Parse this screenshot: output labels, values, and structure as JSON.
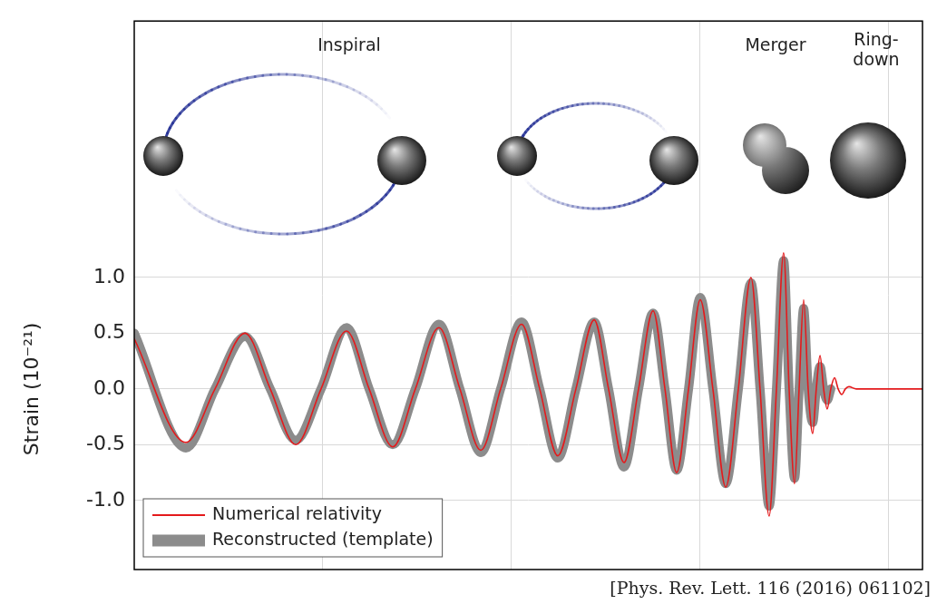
{
  "chart_data": {
    "type": "line",
    "annotations": [
      "Inspiral",
      "Merger",
      "Ring-down"
    ],
    "ylabel": "Strain (10⁻²¹)",
    "source": "[Phys. Rev. Lett. 116 (2016) 061102]",
    "xlim": [
      0,
      4.178
    ],
    "xticks": [
      1,
      2,
      3,
      4
    ],
    "ylim": [
      -1.62,
      3.3
    ],
    "yticks": [
      {
        "value": -1,
        "label": "-1.0"
      },
      {
        "value": -0.5,
        "label": "-0.5"
      },
      {
        "value": 0,
        "label": "0.0"
      },
      {
        "value": 0.5,
        "label": "0.5"
      },
      {
        "value": 1,
        "label": "1.0"
      }
    ],
    "grid": true,
    "legend": "lower left",
    "tick_labels": "y",
    "series": [
      {
        "name": "Numerical relativity",
        "color": "#e41a1c",
        "x": [
          0,
          0.274,
          0.428,
          0.587,
          0.721,
          0.856,
          0.99,
          1.125,
          1.245,
          1.37,
          1.49,
          1.615,
          1.726,
          1.837,
          1.942,
          2.053,
          2.149,
          2.245,
          2.341,
          2.438,
          2.514,
          2.596,
          2.673,
          2.75,
          2.813,
          2.875,
          2.938,
          3.0,
          3.067,
          3.135,
          3.202,
          3.269,
          3.317,
          3.365,
          3.404,
          3.442,
          3.471,
          3.5,
          3.524,
          3.548,
          3.572,
          3.596,
          3.615,
          3.635,
          3.654,
          3.673,
          3.692,
          3.712,
          3.731,
          3.75,
          3.769,
          3.788,
          3.827,
          4.178
        ],
        "values": [
          0.45,
          -0.48,
          0,
          0.5,
          0,
          -0.5,
          0,
          0.52,
          0,
          -0.52,
          0,
          0.55,
          0,
          -0.55,
          0,
          0.58,
          0,
          -0.6,
          0,
          0.62,
          0,
          -0.66,
          0,
          0.7,
          0,
          -0.75,
          0,
          0.8,
          0,
          -0.88,
          0,
          1,
          0,
          -1.14,
          0,
          1.22,
          0,
          -0.85,
          0,
          0.8,
          0,
          -0.4,
          0,
          0.3,
          0,
          -0.18,
          0,
          0.1,
          0,
          -0.05,
          0,
          0.02,
          0,
          0
        ]
      },
      {
        "name": "Reconstructed (template)",
        "color": "#8c8c8c",
        "x": [
          0,
          0.274,
          0.428,
          0.587,
          0.721,
          0.856,
          0.99,
          1.125,
          1.245,
          1.37,
          1.49,
          1.615,
          1.726,
          1.837,
          1.942,
          2.053,
          2.149,
          2.245,
          2.341,
          2.438,
          2.514,
          2.596,
          2.673,
          2.75,
          2.813,
          2.875,
          2.938,
          3.0,
          3.067,
          3.135,
          3.202,
          3.269,
          3.317,
          3.365,
          3.404,
          3.442,
          3.471,
          3.5,
          3.524,
          3.548,
          3.572,
          3.596,
          3.615,
          3.635,
          3.654,
          3.673,
          3.692
        ],
        "values": [
          0.5,
          -0.53,
          0,
          0.47,
          0,
          -0.46,
          0,
          0.55,
          0,
          -0.5,
          0,
          0.58,
          0,
          -0.57,
          0,
          0.6,
          0,
          -0.62,
          0,
          0.6,
          0,
          -0.7,
          0,
          0.68,
          0,
          -0.73,
          0,
          0.82,
          0,
          -0.85,
          0,
          0.95,
          0,
          -1.05,
          0,
          1.15,
          0,
          -0.8,
          0,
          0.72,
          0,
          -0.3,
          0,
          0.2,
          0,
          -0.1,
          0
        ]
      }
    ]
  }
}
